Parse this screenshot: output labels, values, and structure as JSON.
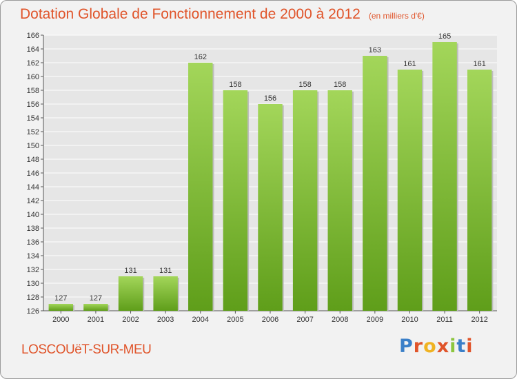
{
  "title": "Dotation Globale de Fonctionnement de 2000 à 2012",
  "unit_note": "(en milliers d'€)",
  "commune": "LOSCOUëT-SUR-MEU",
  "logo": {
    "text": "Proxiti",
    "letters": [
      {
        "ch": "P",
        "color": "#3a7fc8"
      },
      {
        "ch": "r",
        "color": "#e0542a"
      },
      {
        "ch": "o",
        "color": "#f0b323"
      },
      {
        "ch": "x",
        "color": "#e0542a"
      },
      {
        "ch": "i",
        "color": "#8cc63f"
      },
      {
        "ch": "t",
        "color": "#3a7fc8"
      },
      {
        "ch": "i",
        "color": "#e0542a"
      }
    ]
  },
  "colors": {
    "accent": "#e0542a",
    "bar_light": "#a3d65a",
    "bar_dark": "#5f9e1a",
    "grid": "#ffffff"
  },
  "chart_data": {
    "type": "bar",
    "categories": [
      "2000",
      "2001",
      "2002",
      "2003",
      "2004",
      "2005",
      "2006",
      "2007",
      "2008",
      "2009",
      "2010",
      "2011",
      "2012"
    ],
    "values": [
      127,
      127,
      131,
      131,
      162,
      158,
      156,
      158,
      158,
      163,
      161,
      165,
      161
    ],
    "ylim": [
      126,
      166
    ],
    "yticks": [
      126,
      128,
      130,
      132,
      134,
      136,
      138,
      140,
      142,
      144,
      146,
      148,
      150,
      152,
      154,
      156,
      158,
      160,
      162,
      164,
      166
    ],
    "grid": true,
    "data_labels": true
  }
}
